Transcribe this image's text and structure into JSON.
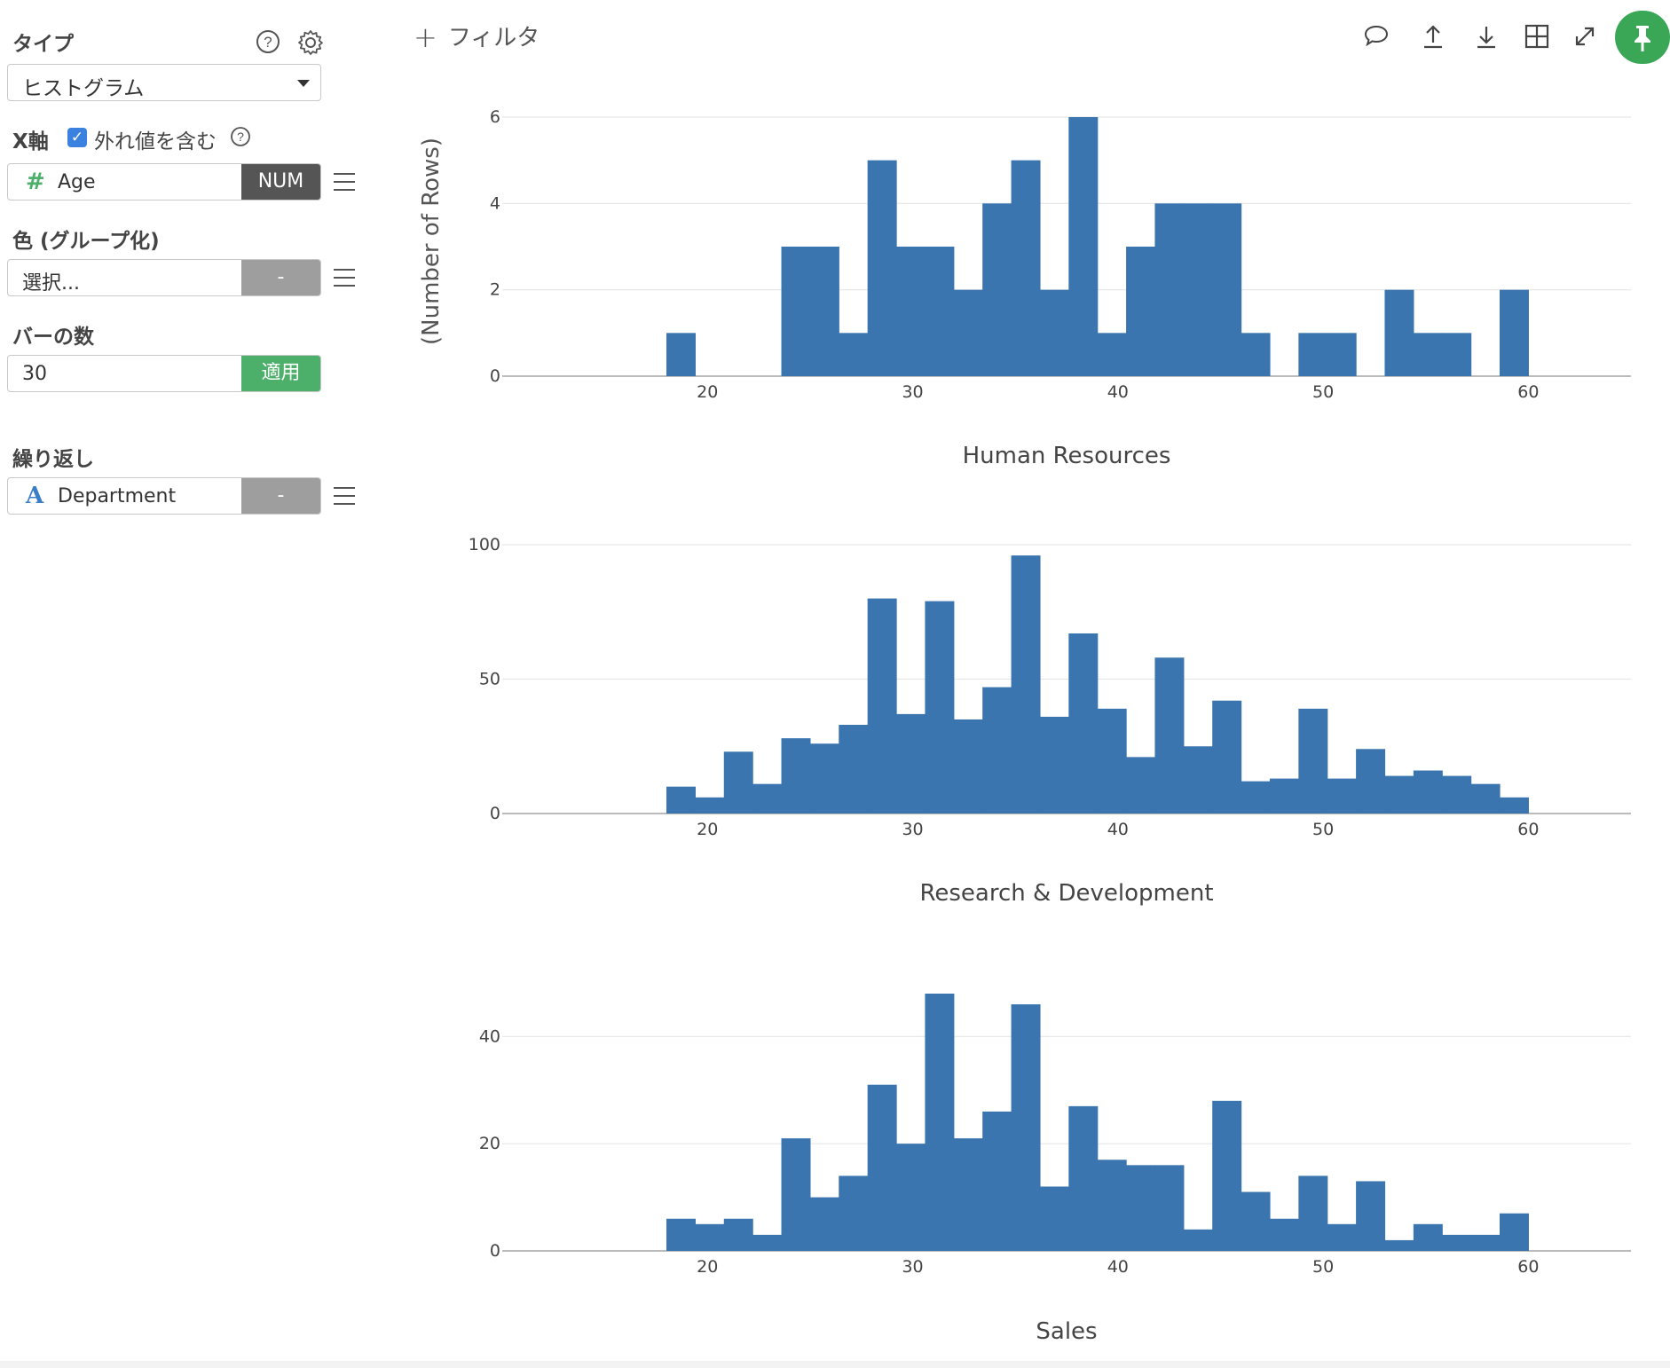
{
  "sidebar": {
    "type_label": "タイプ",
    "type_value": "ヒストグラム",
    "xaxis_label": "X軸",
    "outlier_label": "外れ値を含む",
    "outlier_checked": true,
    "xaxis_field": "Age",
    "xaxis_tag": "NUM",
    "color_label": "色 (グループ化)",
    "color_field": "選択...",
    "color_tag": "-",
    "bins_label": "バーの数",
    "bins_value": "30",
    "bins_apply": "適用",
    "repeat_label": "繰り返し",
    "repeat_field": "Department",
    "repeat_tag": "-",
    "colors": {
      "num_tag": "#555555",
      "apply": "#4caf6a",
      "gray_tag": "#9e9e9e",
      "number_icon": "#4caf6a",
      "text_icon": "#3b7ec8"
    }
  },
  "toolbar": {
    "filter_label": "フィルタ",
    "icons": [
      "comment-icon",
      "upload-icon",
      "download-icon",
      "table-icon",
      "expand-icon",
      "pin-icon"
    ],
    "pin_color": "#3aa757"
  },
  "chart_data": [
    {
      "type": "bar",
      "title": "Human Resources",
      "ylabel": "(Number of Rows)",
      "xlim": [
        10,
        65
      ],
      "ylim": [
        0,
        6
      ],
      "yticks": [
        0,
        2,
        4,
        6
      ],
      "xticks": [
        20,
        30,
        40,
        50,
        60
      ],
      "bin_start": 18,
      "bin_width": 1.4,
      "values": [
        1,
        0,
        0,
        0,
        3,
        3,
        1,
        5,
        3,
        3,
        2,
        4,
        5,
        2,
        6,
        1,
        3,
        4,
        4,
        4,
        1,
        0,
        1,
        1,
        0,
        2,
        1,
        1,
        0,
        2
      ],
      "color": "#3a75b0"
    },
    {
      "type": "bar",
      "title": "Research & Development",
      "ylabel": "",
      "xlim": [
        10,
        65
      ],
      "ylim": [
        0,
        100
      ],
      "yticks": [
        0,
        50,
        100
      ],
      "xticks": [
        20,
        30,
        40,
        50,
        60
      ],
      "bin_start": 18,
      "bin_width": 1.4,
      "values": [
        10,
        6,
        23,
        11,
        28,
        26,
        33,
        80,
        37,
        79,
        35,
        47,
        96,
        36,
        67,
        39,
        21,
        58,
        25,
        42,
        12,
        13,
        39,
        13,
        24,
        14,
        16,
        14,
        11,
        6
      ],
      "color": "#3a75b0"
    },
    {
      "type": "bar",
      "title": "Sales",
      "ylabel": "",
      "xlim": [
        10,
        65
      ],
      "ylim": [
        0,
        48
      ],
      "yticks": [
        0,
        20,
        40
      ],
      "xticks": [
        20,
        30,
        40,
        50,
        60
      ],
      "bin_start": 18,
      "bin_width": 1.4,
      "values": [
        6,
        5,
        6,
        3,
        21,
        10,
        14,
        31,
        20,
        48,
        21,
        26,
        46,
        12,
        27,
        17,
        16,
        16,
        4,
        28,
        11,
        6,
        14,
        5,
        13,
        2,
        5,
        3,
        3,
        7
      ],
      "color": "#3a75b0"
    }
  ]
}
